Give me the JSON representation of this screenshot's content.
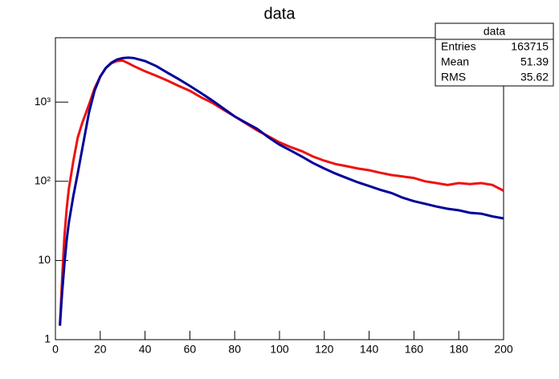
{
  "chart_data": {
    "type": "line",
    "title": "data",
    "x": [
      2,
      3,
      4,
      5,
      6,
      8,
      10,
      12,
      15,
      17.5,
      20,
      22.5,
      25,
      27.5,
      30,
      32.5,
      35,
      40,
      45,
      50,
      55,
      60,
      65,
      70,
      75,
      80,
      85,
      90,
      95,
      100,
      105,
      110,
      115,
      120,
      125,
      130,
      135,
      140,
      145,
      150,
      155,
      160,
      165,
      170,
      175,
      180,
      185,
      190,
      195,
      200
    ],
    "series": [
      {
        "color": "#ee1111",
        "values": [
          1.5,
          6,
          20,
          45,
          80,
          180,
          360,
          550,
          930,
          1500,
          2100,
          2700,
          3100,
          3300,
          3350,
          3100,
          2850,
          2450,
          2150,
          1870,
          1600,
          1390,
          1150,
          980,
          800,
          660,
          540,
          440,
          370,
          310,
          270,
          240,
          205,
          182,
          165,
          155,
          145,
          138,
          128,
          120,
          115,
          110,
          100,
          95,
          90,
          95,
          92,
          95,
          90,
          76
        ]
      },
      {
        "color": "#000099",
        "values": [
          1.5,
          4,
          9,
          18,
          30,
          65,
          128,
          260,
          740,
          1400,
          2100,
          2700,
          3150,
          3450,
          3600,
          3650,
          3600,
          3300,
          2850,
          2350,
          1950,
          1600,
          1300,
          1050,
          830,
          660,
          550,
          460,
          360,
          290,
          245,
          205,
          170,
          145,
          125,
          110,
          97,
          87,
          78,
          71,
          62,
          56,
          52,
          48,
          45,
          43,
          40,
          39,
          36,
          34
        ]
      }
    ],
    "xlim": [
      0,
      200
    ],
    "xticks": [
      0,
      20,
      40,
      60,
      80,
      100,
      120,
      140,
      160,
      180,
      200
    ],
    "ylim": [
      1,
      6500
    ],
    "log_y": true,
    "yticks": [
      1,
      10,
      {
        "value": 100,
        "label": "10²"
      },
      {
        "value": 1000,
        "label": "10³"
      }
    ],
    "stats": {
      "title": "data",
      "rows": [
        [
          "Entries",
          "163715"
        ],
        [
          "Mean",
          "51.39"
        ],
        [
          "RMS",
          "35.62"
        ]
      ]
    }
  }
}
